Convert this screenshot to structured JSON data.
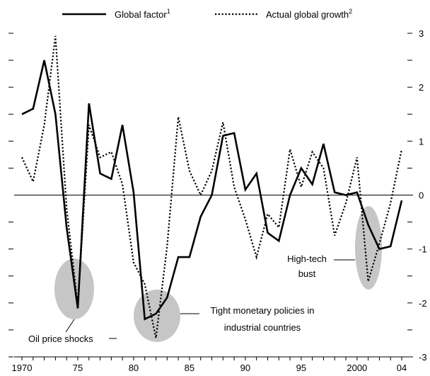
{
  "chart_data": {
    "type": "line",
    "x": [
      1970,
      1971,
      1972,
      1973,
      1974,
      1975,
      1976,
      1977,
      1978,
      1979,
      1980,
      1981,
      1982,
      1983,
      1984,
      1985,
      1986,
      1987,
      1988,
      1989,
      1990,
      1991,
      1992,
      1993,
      1994,
      1995,
      1996,
      1997,
      1998,
      1999,
      2000,
      2001,
      2002,
      2003,
      2004
    ],
    "x_tick_values": [
      1970,
      1975,
      1980,
      1985,
      1990,
      1995,
      2000,
      2004
    ],
    "x_tick_labels": [
      "1970",
      "75",
      "80",
      "85",
      "90",
      "95",
      "2000",
      "04"
    ],
    "ylim": [
      -3,
      3
    ],
    "y_tick_values": [
      -3,
      -2,
      -1,
      0,
      1,
      2,
      3
    ],
    "y_tick_labels": [
      "-3",
      "-2",
      "-1",
      "0",
      "1",
      "2",
      "3"
    ],
    "grid": false,
    "series": [
      {
        "name": "Global factor",
        "superscript": "1",
        "style": "solid",
        "values": [
          1.5,
          1.6,
          2.5,
          1.5,
          -0.6,
          -2.1,
          1.7,
          0.4,
          0.3,
          1.3,
          0.05,
          -2.3,
          -2.2,
          -1.9,
          -1.15,
          -1.15,
          -0.4,
          0.0,
          1.1,
          1.15,
          0.1,
          0.4,
          -0.7,
          -0.85,
          0.0,
          0.5,
          0.2,
          0.95,
          0.05,
          0.0,
          0.05,
          -0.55,
          -1.0,
          -0.95,
          -0.1
        ]
      },
      {
        "name": "Actual global growth",
        "superscript": "2",
        "style": "dotted",
        "values": [
          0.7,
          0.25,
          1.3,
          2.95,
          -0.25,
          -2.05,
          1.3,
          0.7,
          0.8,
          0.2,
          -1.25,
          -1.65,
          -2.65,
          -0.95,
          1.45,
          0.45,
          0.0,
          0.45,
          1.35,
          0.15,
          -0.45,
          -1.15,
          -0.35,
          -0.6,
          0.85,
          0.15,
          0.8,
          0.5,
          -0.75,
          -0.15,
          0.7,
          -1.6,
          -0.9,
          -0.15,
          0.85
        ]
      }
    ],
    "annotations": [
      {
        "id": "oil",
        "lines": [
          "Oil price shocks"
        ]
      },
      {
        "id": "tight",
        "lines": [
          "Tight monetary policies in",
          "industrial countries"
        ]
      },
      {
        "id": "hightech",
        "lines": [
          "High-tech",
          "bust"
        ]
      }
    ]
  }
}
